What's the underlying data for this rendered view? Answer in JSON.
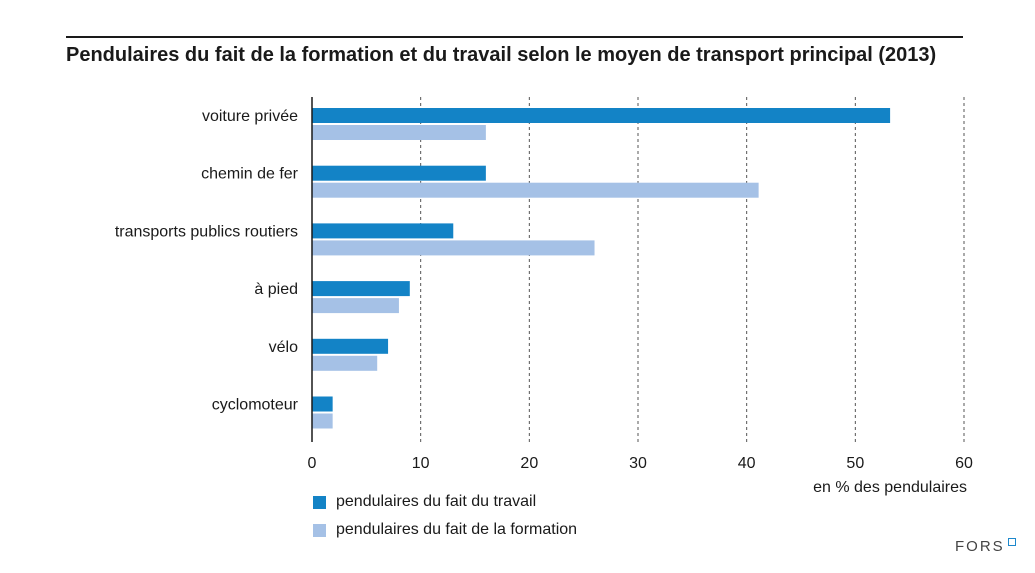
{
  "chart_data": {
    "type": "bar",
    "orientation": "horizontal",
    "title": "Pendulaires du fait de la formation et du travail selon le moyen de transport principal (2013)",
    "categories": [
      "voiture privée",
      "chemin de fer",
      "transports publics routiers",
      "à pied",
      "vélo",
      "cyclomoteur"
    ],
    "series": [
      {
        "name": "pendulaires du fait du travail",
        "color": "#1383c6",
        "values": [
          53.2,
          16.0,
          13.0,
          9.0,
          7.0,
          1.9
        ]
      },
      {
        "name": "pendulaires du fait de la formation",
        "color": "#a5c1e6",
        "values": [
          16.0,
          41.1,
          26.0,
          8.0,
          6.0,
          1.9
        ]
      }
    ],
    "xlabel": "en % des pendulaires",
    "xlim": [
      0,
      60
    ],
    "xticks": [
      0,
      10,
      20,
      30,
      40,
      50,
      60
    ],
    "grid": "vertical dashed",
    "legend": "bottom-left"
  },
  "brand": {
    "name": "FORS"
  }
}
